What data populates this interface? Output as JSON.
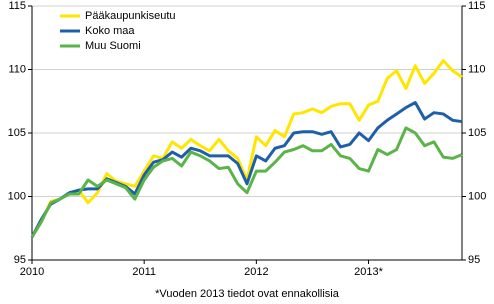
{
  "chart_data": {
    "type": "line",
    "categories": [
      "2010",
      null,
      null,
      null,
      null,
      null,
      null,
      null,
      null,
      null,
      null,
      null,
      "2011",
      null,
      null,
      null,
      null,
      null,
      null,
      null,
      null,
      null,
      null,
      null,
      "2012",
      null,
      null,
      null,
      null,
      null,
      null,
      null,
      null,
      null,
      null,
      null,
      "2013*",
      null,
      null,
      null,
      null,
      null,
      null,
      null,
      null,
      null,
      null
    ],
    "series": [
      {
        "name": "Pääkaupunkiseutu",
        "color": "#ffe600",
        "values": [
          96.8,
          98,
          99.6,
          99.8,
          100.2,
          100.5,
          99.5,
          100.3,
          101.8,
          101.2,
          101,
          100.8,
          102,
          103.2,
          103,
          104.3,
          103.8,
          104.5,
          104,
          103.6,
          104.5,
          103.6,
          103,
          101.3,
          104.7,
          104,
          105.2,
          104.7,
          106.5,
          106.6,
          106.9,
          106.6,
          107.1,
          107.3,
          107.3,
          106,
          107.2,
          107.5,
          109.3,
          109.9,
          108.5,
          110.3,
          108.9,
          109.7,
          110.7,
          109.9,
          109.4
        ]
      },
      {
        "name": "Koko maa",
        "color": "#1f5fa8",
        "values": [
          96.8,
          98.2,
          99.4,
          99.8,
          100.3,
          100.5,
          100.6,
          100.6,
          101.4,
          101.1,
          100.8,
          100.2,
          101.7,
          102.7,
          102.9,
          103.5,
          103.1,
          103.8,
          103.6,
          103.2,
          103.2,
          103.2,
          102.6,
          101,
          103.2,
          102.8,
          103.8,
          104,
          105,
          105.1,
          105.1,
          104.9,
          105.1,
          103.9,
          104.1,
          105,
          104.4,
          105.4,
          106,
          106.5,
          107,
          107.4,
          106.1,
          106.6,
          106.5,
          106,
          105.9
        ]
      },
      {
        "name": "Muu Suomi",
        "color": "#5ab448",
        "values": [
          96.8,
          98,
          99.5,
          99.8,
          100.2,
          100.2,
          101.3,
          100.8,
          101.3,
          101,
          100.7,
          99.8,
          101.3,
          102.3,
          102.8,
          103,
          102.4,
          103.5,
          103.2,
          102.8,
          102.2,
          102.3,
          101,
          100.3,
          102,
          102,
          102.7,
          103.5,
          103.7,
          104,
          103.6,
          103.6,
          104.1,
          103.2,
          103,
          102.2,
          102,
          103.7,
          103.3,
          103.7,
          105.4,
          105,
          104,
          104.3,
          103.1,
          103,
          103.3
        ]
      }
    ],
    "ylim": [
      95,
      115
    ],
    "yticks": [
      95,
      100,
      105,
      110,
      115
    ],
    "grid": true,
    "legend": "top-left",
    "note": "*Vuoden 2013 tiedot ovat ennakollisia"
  }
}
